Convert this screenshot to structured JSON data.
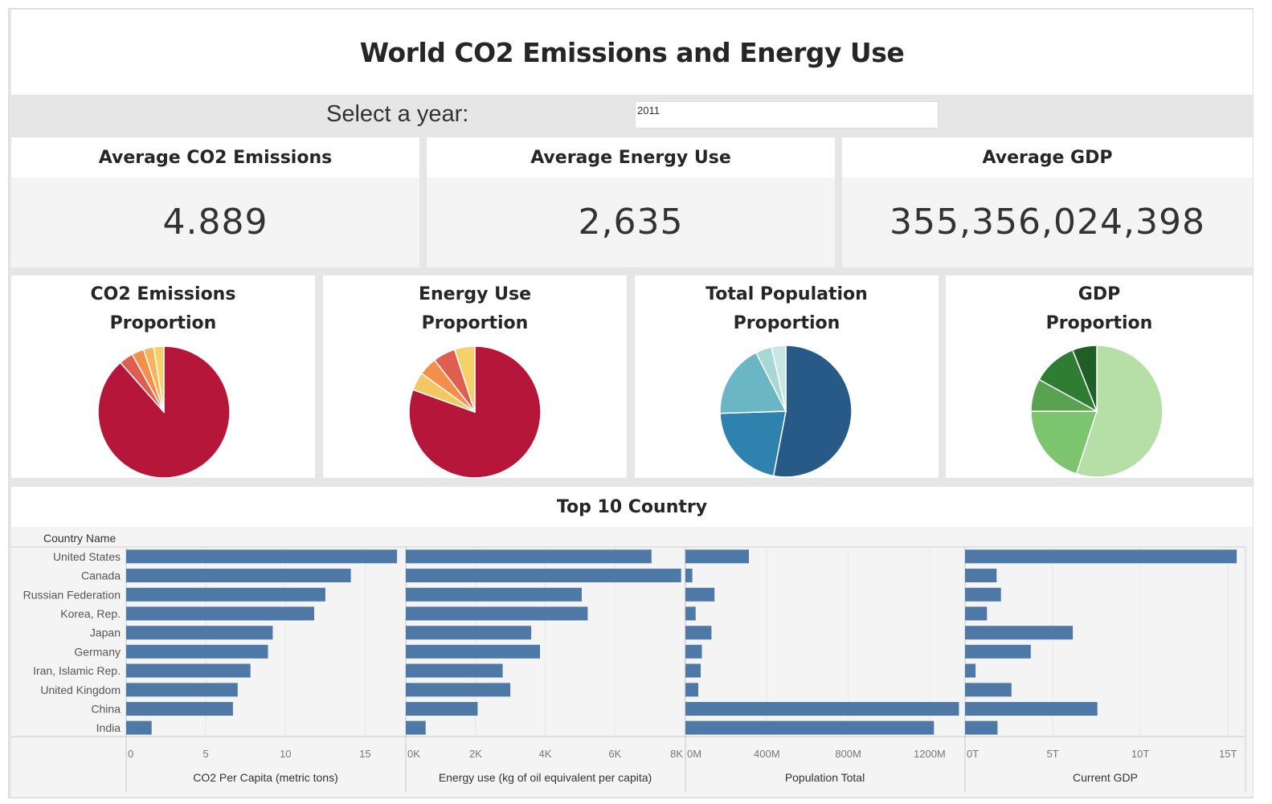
{
  "dashboard": {
    "title": "World CO2 Emissions and Energy Use",
    "year_label": "Select a year:",
    "year_value": "2011"
  },
  "kpis": [
    {
      "title": "Average CO2 Emissions",
      "value": "4.889"
    },
    {
      "title": "Average Energy Use",
      "value": "2,635"
    },
    {
      "title": "Average GDP",
      "value": "355,356,024,398"
    }
  ],
  "colors": {
    "bar": "#4e79a7",
    "panel": "#f4f4f4",
    "background": "#e6e6e6"
  },
  "chart_data": [
    {
      "type": "pie",
      "title_line1": "CO2 Emissions",
      "title_line2": "Proportion",
      "values": [
        88.5,
        3.5,
        3.0,
        2.5,
        2.5
      ],
      "colors": [
        "#b5163a",
        "#e05e4f",
        "#f48f4b",
        "#f7b45c",
        "#f5d06b"
      ]
    },
    {
      "type": "pie",
      "title_line1": "Energy Use",
      "title_line2": "Proportion",
      "values": [
        80.5,
        4.5,
        4.5,
        5.5,
        5.0
      ],
      "colors": [
        "#b5163a",
        "#f2c764",
        "#f48f4b",
        "#e05e4f",
        "#f5d06b"
      ]
    },
    {
      "type": "pie",
      "title_line1": "Total Population",
      "title_line2": "Proportion",
      "values": [
        53.0,
        21.5,
        18.0,
        4.0,
        3.5
      ],
      "colors": [
        "#275a87",
        "#2e82ad",
        "#6bb6c5",
        "#a7d8d7",
        "#c8e7e3"
      ]
    },
    {
      "type": "pie",
      "title_line1": "GDP",
      "title_line2": "Proportion",
      "values": [
        55.0,
        20.0,
        8.0,
        11.0,
        6.0
      ],
      "colors": [
        "#b5dfa7",
        "#7dc46e",
        "#58a251",
        "#2f7d32",
        "#1f5e25"
      ]
    },
    {
      "type": "bar",
      "title": "Top 10 Country",
      "row_header": "Country Name",
      "categories": [
        "United States",
        "Canada",
        "Russian Federation",
        "Korea, Rep.",
        "Japan",
        "Germany",
        "Iran, Islamic Rep.",
        "United Kingdom",
        "China",
        "India"
      ],
      "panels": [
        {
          "name": "co2",
          "xlabel": "CO2 Per Capita (metric tons)",
          "xlim": [
            0,
            17.5
          ],
          "ticks": [
            0,
            5,
            10,
            15
          ],
          "tick_labels": [
            "0",
            "5",
            "10",
            "15"
          ],
          "values": [
            17.0,
            14.1,
            12.5,
            11.8,
            9.2,
            8.9,
            7.8,
            7.0,
            6.7,
            1.6
          ]
        },
        {
          "name": "energy",
          "xlabel": "Energy use (kg of oil equivalent per capita)",
          "xlim": [
            0,
            8000
          ],
          "ticks": [
            0,
            2000,
            4000,
            6000,
            8000
          ],
          "tick_labels": [
            "0K",
            "2K",
            "4K",
            "6K",
            "8K"
          ],
          "values": [
            7050,
            7900,
            5050,
            5220,
            3600,
            3850,
            2780,
            3000,
            2060,
            570
          ]
        },
        {
          "name": "population",
          "xlabel": "Population Total",
          "xlim": [
            0,
            1370
          ],
          "ticks": [
            0,
            400,
            800,
            1200
          ],
          "tick_labels": [
            "0M",
            "400M",
            "800M",
            "1200M"
          ],
          "values": [
            312,
            34,
            143,
            50,
            128,
            81,
            75,
            63,
            1344,
            1221
          ]
        },
        {
          "name": "gdp",
          "xlabel": "Current GDP",
          "xlim": [
            0,
            16
          ],
          "ticks": [
            0,
            5,
            10,
            15
          ],
          "tick_labels": [
            "0T",
            "5T",
            "10T",
            "15T"
          ],
          "values": [
            15.5,
            1.8,
            2.05,
            1.25,
            6.15,
            3.75,
            0.6,
            2.65,
            7.55,
            1.85
          ]
        }
      ]
    }
  ]
}
